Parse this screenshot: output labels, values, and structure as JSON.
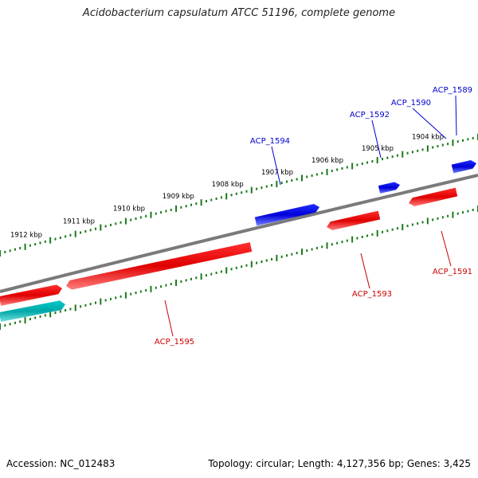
{
  "title": "Acidobacterium capsulatum ATCC 51196, complete genome",
  "accession": "Accession: NC_012483",
  "summary": "Topology: circular; Length: 4,127,356 bp; Genes: 3,425",
  "colors": {
    "backbone": "#7a7a7a",
    "tick": "#1a7a1a",
    "forward_gene": "#0000e0",
    "reverse_gene": "#e00000",
    "other_gene": "#00b4b4",
    "forward_label": "#0000cc",
    "reverse_label": "#cc0000"
  },
  "kbp_ticks": [
    "1904 kbp",
    "1905 kbp",
    "1906 kbp",
    "1907 kbp",
    "1908 kbp",
    "1909 kbp",
    "1910 kbp",
    "1911 kbp",
    "1912 kbp"
  ],
  "genes": [
    {
      "name": "ACP_1589",
      "strand": "forward"
    },
    {
      "name": "ACP_1590",
      "strand": "forward"
    },
    {
      "name": "ACP_1592",
      "strand": "forward"
    },
    {
      "name": "ACP_1594",
      "strand": "forward"
    },
    {
      "name": "ACP_1591",
      "strand": "reverse"
    },
    {
      "name": "ACP_1593",
      "strand": "reverse"
    },
    {
      "name": "ACP_1595",
      "strand": "reverse"
    }
  ]
}
